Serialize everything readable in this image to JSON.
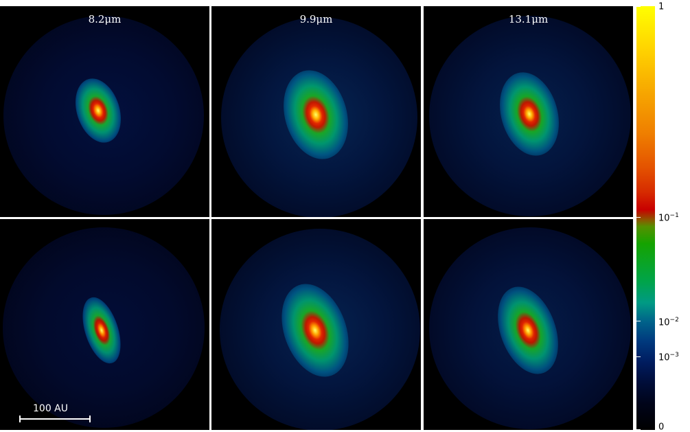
{
  "wavelength_labels": [
    "8.2μm",
    "9.9μm",
    "13.1μm"
  ],
  "scale_bar": {
    "label": "100 AU"
  },
  "colorbar": {
    "ticks": [
      {
        "base": "1",
        "exp": ""
      },
      {
        "base": "10",
        "exp": "−1"
      },
      {
        "base": "10",
        "exp": "−2"
      },
      {
        "base": "10",
        "exp": "−3"
      },
      {
        "base": "0",
        "exp": ""
      }
    ],
    "colors": [
      "#ffff00",
      "#ef7f00",
      "#c80000",
      "#15a300",
      "#009a84",
      "#003a7e",
      "#000000"
    ]
  }
}
